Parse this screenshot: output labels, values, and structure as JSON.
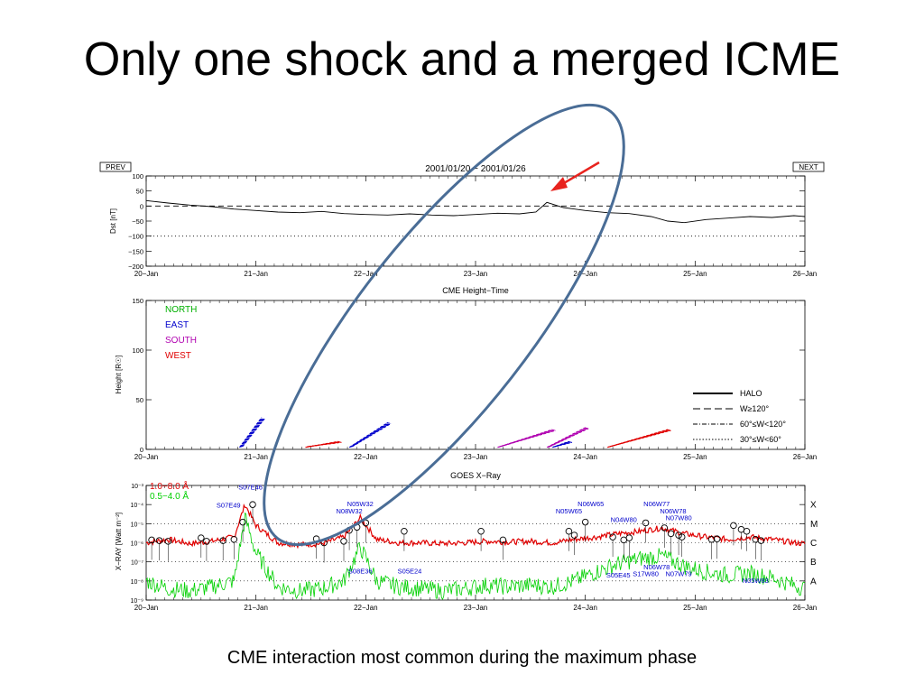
{
  "slide": {
    "title": "Only one shock and a merged ICME",
    "caption": "CME interaction most common during the maximum phase"
  },
  "nav": {
    "prev_label": "PREV",
    "next_label": "NEXT"
  },
  "chart_data": [
    {
      "type": "line",
      "title": "2001/01/20 − 2001/01/26",
      "ylabel": "Dst [nT]",
      "xlim": [
        "2001-01-20",
        "2001-01-26"
      ],
      "x_ticks": [
        "20−Jan",
        "21−Jan",
        "22−Jan",
        "23−Jan",
        "24−Jan",
        "25−Jan",
        "26−Jan"
      ],
      "ylim": [
        -200,
        100
      ],
      "y_ticks": [
        100,
        50,
        0,
        -50,
        -100,
        -150,
        -200
      ],
      "y_tick_labels": [
        "100",
        "50",
        "0",
        "−50",
        "−100",
        "−150",
        "−200"
      ],
      "reference_lines": [
        {
          "y": 0,
          "style": "dashed"
        },
        {
          "y": -100,
          "style": "dotted"
        }
      ],
      "series": [
        {
          "color": "#000000",
          "x": [
            20.0,
            20.2,
            20.4,
            20.6,
            20.8,
            21.0,
            21.2,
            21.4,
            21.6,
            21.8,
            22.0,
            22.2,
            22.4,
            22.6,
            22.8,
            23.0,
            23.2,
            23.4,
            23.55,
            23.65,
            23.8,
            24.0,
            24.2,
            24.4,
            24.6,
            24.75,
            24.9,
            25.1,
            25.3,
            25.5,
            25.7,
            25.9,
            26.0
          ],
          "values": [
            18,
            10,
            3,
            -2,
            -10,
            -15,
            -20,
            -22,
            -18,
            -25,
            -28,
            -30,
            -26,
            -30,
            -32,
            -28,
            -24,
            -26,
            -20,
            12,
            -5,
            -15,
            -22,
            -25,
            -35,
            -50,
            -55,
            -45,
            -40,
            -35,
            -38,
            -32,
            -35
          ]
        }
      ]
    },
    {
      "type": "scatter",
      "title": "CME Height−Time",
      "ylabel": "Height [R☉]",
      "xlim": [
        "2001-01-20",
        "2001-01-26"
      ],
      "x_ticks": [
        "20−Jan",
        "21−Jan",
        "22−Jan",
        "23−Jan",
        "24−Jan",
        "25−Jan",
        "26−Jan"
      ],
      "ylim": [
        0,
        150
      ],
      "y_ticks": [
        0,
        50,
        100,
        150
      ],
      "legend_direction": [
        {
          "label": "NORTH",
          "color": "#00b000"
        },
        {
          "label": "EAST",
          "color": "#0000cc"
        },
        {
          "label": "SOUTH",
          "color": "#b000b0"
        },
        {
          "label": "WEST",
          "color": "#e00000"
        }
      ],
      "legend_width": [
        {
          "label": "HALO",
          "style": "solid"
        },
        {
          "label": "W≥120°",
          "style": "dashed"
        },
        {
          "label": "60°≤W<120°",
          "style": "dashdot"
        },
        {
          "label": "30°≤W<60°",
          "style": "dotted"
        }
      ],
      "tracks": [
        {
          "direction": "EAST",
          "color": "#0000cc",
          "x0": 20.85,
          "x1": 21.05,
          "y0": 2,
          "y1": 32
        },
        {
          "direction": "WEST",
          "color": "#e00000",
          "x0": 21.45,
          "x1": 21.75,
          "y0": 2,
          "y1": 8
        },
        {
          "direction": "EAST",
          "color": "#0000cc",
          "x0": 21.85,
          "x1": 22.2,
          "y0": 2,
          "y1": 27
        },
        {
          "direction": "SOUTH",
          "color": "#b000b0",
          "x0": 23.2,
          "x1": 23.7,
          "y0": 2,
          "y1": 20
        },
        {
          "direction": "SOUTH",
          "color": "#b000b0",
          "x0": 23.65,
          "x1": 24.0,
          "y0": 2,
          "y1": 22
        },
        {
          "direction": "EAST",
          "color": "#0000cc",
          "x0": 23.7,
          "x1": 23.85,
          "y0": 2,
          "y1": 8
        },
        {
          "direction": "WEST",
          "color": "#e00000",
          "x0": 24.2,
          "x1": 24.75,
          "y0": 2,
          "y1": 20
        }
      ]
    },
    {
      "type": "line",
      "title": "GOES X−Ray",
      "ylabel": "X−RAY [Watt m⁻²]",
      "xlim": [
        "2001-01-20",
        "2001-01-26"
      ],
      "x_ticks": [
        "20−Jan",
        "21−Jan",
        "22−Jan",
        "23−Jan",
        "24−Jan",
        "25−Jan",
        "26−Jan"
      ],
      "y_scale": "log",
      "ylim": [
        1e-09,
        0.001
      ],
      "y_tick_labels": [
        "10⁻³",
        "10⁻⁴",
        "10⁻⁵",
        "10⁻⁶",
        "10⁻⁷",
        "10⁻⁸",
        "10⁻⁹"
      ],
      "flare_classes": [
        "X",
        "M",
        "C",
        "B",
        "A"
      ],
      "series": [
        {
          "name": "1.0−8.0 Å",
          "color": "#e00000",
          "x": [
            20.0,
            20.2,
            20.4,
            20.6,
            20.8,
            20.9,
            21.0,
            21.2,
            21.4,
            21.6,
            21.8,
            21.95,
            22.1,
            22.3,
            22.5,
            22.7,
            22.9,
            23.1,
            23.3,
            23.5,
            23.7,
            23.9,
            24.1,
            24.3,
            24.5,
            24.7,
            24.9,
            25.1,
            25.3,
            25.5,
            25.7,
            25.9,
            26.0
          ],
          "values": [
            1e-06,
            1.5e-06,
            9e-07,
            1.2e-06,
            2e-06,
            0.0001,
            8e-06,
            1e-06,
            8e-07,
            9e-07,
            2e-06,
            2e-05,
            1.5e-06,
            1e-06,
            1e-06,
            9e-07,
            1e-06,
            1.2e-06,
            1.1e-06,
            1.2e-06,
            1e-06,
            1.5e-06,
            2e-06,
            3e-06,
            4e-06,
            6e-06,
            3e-06,
            2e-06,
            1.5e-06,
            2e-06,
            1.5e-06,
            1e-06,
            9e-07
          ]
        },
        {
          "name": "0.5−4.0 Å",
          "color": "#00d000",
          "x": [
            20.0,
            20.2,
            20.4,
            20.6,
            20.8,
            20.9,
            21.0,
            21.2,
            21.4,
            21.6,
            21.8,
            21.95,
            22.1,
            22.3,
            22.5,
            22.7,
            22.9,
            23.1,
            23.3,
            23.5,
            23.7,
            23.9,
            24.1,
            24.3,
            24.5,
            24.7,
            24.9,
            25.1,
            25.3,
            25.5,
            25.7,
            25.9,
            26.0
          ],
          "values": [
            1e-08,
            4e-09,
            3e-09,
            5e-09,
            1e-08,
            2e-05,
            3e-07,
            5e-09,
            3e-09,
            4e-09,
            1e-08,
            6e-07,
            1e-08,
            5e-09,
            4e-09,
            3e-09,
            4e-09,
            6e-09,
            5e-09,
            6e-09,
            5e-09,
            1e-08,
            3e-08,
            8e-08,
            1.5e-07,
            2e-07,
            6e-08,
            3e-08,
            2e-08,
            2.5e-08,
            1.5e-08,
            6e-09,
            4e-09
          ]
        }
      ],
      "flare_labels": [
        {
          "text": "S07E46",
          "x": 20.95,
          "y": 0.0006
        },
        {
          "text": "S07E49",
          "x": 20.75,
          "y": 7e-05
        },
        {
          "text": "N05W32",
          "x": 21.95,
          "y": 8e-05
        },
        {
          "text": "N08W32",
          "x": 21.85,
          "y": 3.5e-05
        },
        {
          "text": "N06W65",
          "x": 24.05,
          "y": 8e-05
        },
        {
          "text": "N05W65",
          "x": 23.85,
          "y": 3.5e-05
        },
        {
          "text": "N06W77",
          "x": 24.65,
          "y": 8e-05
        },
        {
          "text": "N06W78",
          "x": 24.8,
          "y": 3.5e-05
        },
        {
          "text": "N07W80",
          "x": 24.85,
          "y": 1.5e-05
        },
        {
          "text": "N04W80",
          "x": 24.35,
          "y": 1.2e-05
        },
        {
          "text": "S08E36",
          "x": 21.95,
          "y": 2.5e-08
        },
        {
          "text": "S05E24",
          "x": 22.4,
          "y": 2.5e-08
        },
        {
          "text": "S05E45",
          "x": 24.3,
          "y": 1.5e-08
        },
        {
          "text": "S17W80",
          "x": 24.55,
          "y": 1.8e-08
        },
        {
          "text": "N06W78",
          "x": 24.65,
          "y": 4e-08
        },
        {
          "text": "N07W79",
          "x": 24.85,
          "y": 1.8e-08
        },
        {
          "text": "N05W83",
          "x": 25.55,
          "y": 8e-09
        }
      ],
      "flare_peaks": [
        {
          "x": 20.05,
          "y": 1.4e-06
        },
        {
          "x": 20.12,
          "y": 1.3e-06
        },
        {
          "x": 20.2,
          "y": 1.2e-06
        },
        {
          "x": 20.5,
          "y": 1.8e-06
        },
        {
          "x": 20.55,
          "y": 1.2e-06
        },
        {
          "x": 20.7,
          "y": 1.3e-06
        },
        {
          "x": 20.8,
          "y": 1.5e-06
        },
        {
          "x": 20.88,
          "y": 1.2e-05
        },
        {
          "x": 20.97,
          "y": 0.0001
        },
        {
          "x": 21.55,
          "y": 1.6e-06
        },
        {
          "x": 21.62,
          "y": 1e-06
        },
        {
          "x": 21.8,
          "y": 1.2e-06
        },
        {
          "x": 21.85,
          "y": 4.5e-06
        },
        {
          "x": 21.92,
          "y": 6.5e-06
        },
        {
          "x": 22.0,
          "y": 1.1e-05
        },
        {
          "x": 22.35,
          "y": 4e-06
        },
        {
          "x": 23.05,
          "y": 4e-06
        },
        {
          "x": 23.25,
          "y": 1.4e-06
        },
        {
          "x": 23.85,
          "y": 4e-06
        },
        {
          "x": 23.9,
          "y": 2.5e-06
        },
        {
          "x": 24.0,
          "y": 1.2e-05
        },
        {
          "x": 24.25,
          "y": 2e-06
        },
        {
          "x": 24.35,
          "y": 1.4e-06
        },
        {
          "x": 24.4,
          "y": 1.8e-06
        },
        {
          "x": 24.55,
          "y": 1.1e-05
        },
        {
          "x": 24.72,
          "y": 6e-06
        },
        {
          "x": 24.78,
          "y": 3e-06
        },
        {
          "x": 24.85,
          "y": 2.5e-06
        },
        {
          "x": 24.88,
          "y": 2e-06
        },
        {
          "x": 25.15,
          "y": 1.5e-06
        },
        {
          "x": 25.2,
          "y": 1.6e-06
        },
        {
          "x": 25.35,
          "y": 8e-06
        },
        {
          "x": 25.42,
          "y": 5e-06
        },
        {
          "x": 25.47,
          "y": 4e-06
        },
        {
          "x": 25.55,
          "y": 1.5e-06
        },
        {
          "x": 25.6,
          "y": 1.3e-06
        }
      ]
    }
  ],
  "annotations": {
    "ellipse_color": "#4a6d96",
    "arrow_color": "#e8231e"
  }
}
